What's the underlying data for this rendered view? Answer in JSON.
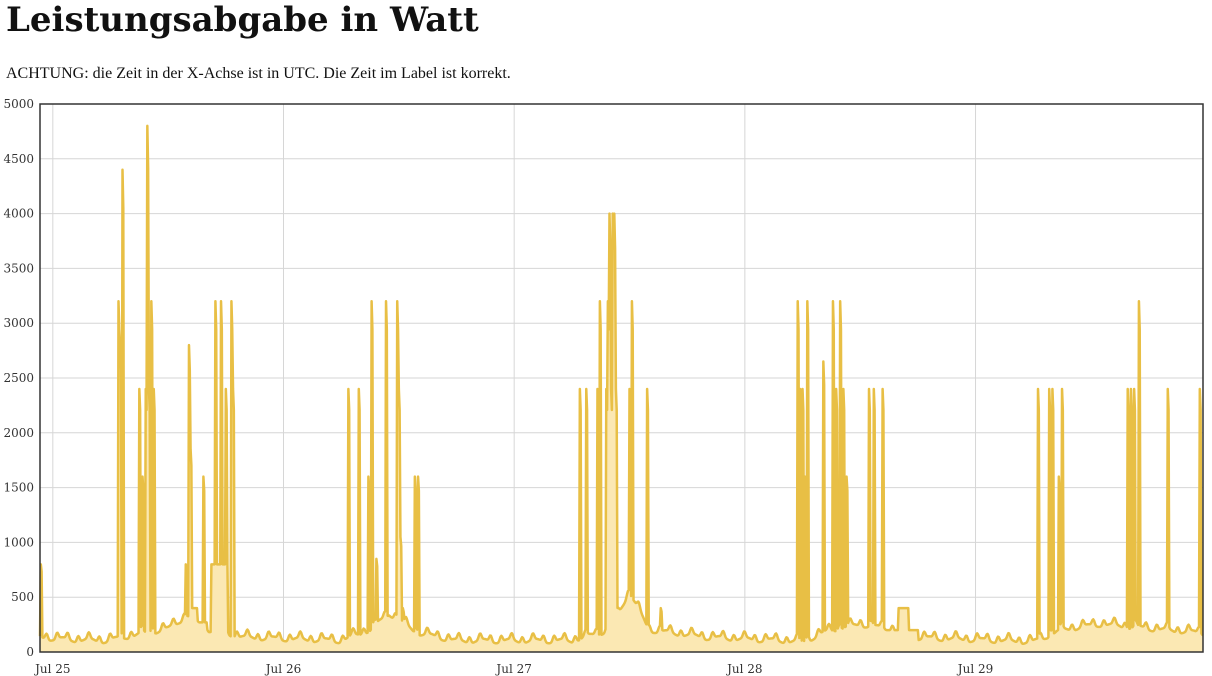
{
  "page": {
    "title": "Leistungsabgabe in Watt",
    "note": "ACHTUNG: die Zeit in der X-Achse ist in UTC. Die Zeit im Label ist korrekt."
  },
  "colors": {
    "line": "#e8bf45",
    "fill": "#fbe8b3",
    "grid": "#d6d6d6",
    "frame": "#333333"
  },
  "chart_data": {
    "type": "area",
    "title": "",
    "xlabel": "",
    "ylabel": "",
    "grid": true,
    "ylim": [
      0,
      5000
    ],
    "xlim": [
      "2023-07-24 22:40",
      "2023-07-29 23:40"
    ],
    "yticks": [
      0,
      500,
      1000,
      1500,
      2000,
      2500,
      3000,
      3500,
      4000,
      4500,
      5000
    ],
    "xticks": [
      {
        "label": "Jul 25",
        "t": "2023-07-25 00:00"
      },
      {
        "label": "Jul 26",
        "t": "2023-07-26 00:00"
      },
      {
        "label": "Jul 27",
        "t": "2023-07-27 00:00"
      },
      {
        "label": "Jul 28",
        "t": "2023-07-28 00:00"
      },
      {
        "label": "Jul 29",
        "t": "2023-07-29 00:00"
      }
    ],
    "series": [
      {
        "base_level": [
          [
            "2023-07-24 22:40",
            180
          ],
          [
            "2023-07-25 01:50",
            160
          ],
          [
            "2023-07-25 05:30",
            150
          ],
          [
            "2023-07-25 12:00",
            260
          ],
          [
            "2023-07-25 14:00",
            380
          ],
          [
            "2023-07-25 16:15",
            250
          ],
          [
            "2023-07-25 20:00",
            180
          ],
          [
            "2023-07-26 06:00",
            150
          ],
          [
            "2023-07-26 09:00",
            250
          ],
          [
            "2023-07-26 11:00",
            400
          ],
          [
            "2023-07-26 14:00",
            220
          ],
          [
            "2023-07-26 18:00",
            150
          ],
          [
            "2023-07-27 06:00",
            150
          ],
          [
            "2023-07-27 10:00",
            250
          ],
          [
            "2023-07-27 12:00",
            600
          ],
          [
            "2023-07-27 14:00",
            250
          ],
          [
            "2023-07-27 20:00",
            180
          ],
          [
            "2023-07-28 04:00",
            150
          ],
          [
            "2023-07-28 06:00",
            140
          ],
          [
            "2023-07-28 09:00",
            250
          ],
          [
            "2023-07-28 12:00",
            300
          ],
          [
            "2023-07-28 15:30",
            250
          ],
          [
            "2023-07-28 17:00",
            180
          ],
          [
            "2023-07-29 06:00",
            140
          ],
          [
            "2023-07-29 09:00",
            250
          ],
          [
            "2023-07-29 13:00",
            300
          ],
          [
            "2023-07-29 23:40",
            220
          ]
        ],
        "plateaus": [
          {
            "start": "2023-07-25 14:30",
            "end": "2023-07-25 15:00",
            "value": 400
          },
          {
            "start": "2023-07-25 15:00",
            "end": "2023-07-25 16:00",
            "value": 270
          },
          {
            "start": "2023-07-25 16:30",
            "end": "2023-07-25 18:10",
            "value": 800
          },
          {
            "start": "2023-07-28 16:00",
            "end": "2023-07-28 17:00",
            "value": 400
          },
          {
            "start": "2023-07-28 14:30",
            "end": "2023-07-28 18:00",
            "value": 200
          }
        ],
        "spikes": [
          [
            "2023-07-24 22:45",
            800
          ],
          [
            "2023-07-25 06:50",
            3200
          ],
          [
            "2023-07-25 07:00",
            2800
          ],
          [
            "2023-07-25 07:15",
            4400
          ],
          [
            "2023-07-25 09:00",
            2400
          ],
          [
            "2023-07-25 09:20",
            1600
          ],
          [
            "2023-07-25 09:40",
            2400
          ],
          [
            "2023-07-25 09:50",
            4800
          ],
          [
            "2023-07-25 10:00",
            2400
          ],
          [
            "2023-07-25 10:15",
            3200
          ],
          [
            "2023-07-25 10:30",
            2400
          ],
          [
            "2023-07-25 13:50",
            800
          ],
          [
            "2023-07-25 14:10",
            2800
          ],
          [
            "2023-07-25 14:20",
            1850
          ],
          [
            "2023-07-25 15:40",
            1600
          ],
          [
            "2023-07-25 16:55",
            3200
          ],
          [
            "2023-07-25 17:30",
            3200
          ],
          [
            "2023-07-25 18:00",
            2400
          ],
          [
            "2023-07-25 18:35",
            3200
          ],
          [
            "2023-07-25 18:45",
            2400
          ],
          [
            "2023-07-26 06:45",
            2400
          ],
          [
            "2023-07-26 07:50",
            2400
          ],
          [
            "2023-07-26 08:50",
            1600
          ],
          [
            "2023-07-26 09:10",
            3200
          ],
          [
            "2023-07-26 09:40",
            850
          ],
          [
            "2023-07-26 10:40",
            3200
          ],
          [
            "2023-07-26 11:50",
            3200
          ],
          [
            "2023-07-26 12:00",
            2400
          ],
          [
            "2023-07-26 12:10",
            1050
          ],
          [
            "2023-07-26 12:25",
            400
          ],
          [
            "2023-07-26 13:40",
            1600
          ],
          [
            "2023-07-26 14:00",
            1600
          ],
          [
            "2023-07-27 06:50",
            2400
          ],
          [
            "2023-07-27 07:30",
            2400
          ],
          [
            "2023-07-27 08:40",
            2400
          ],
          [
            "2023-07-27 08:55",
            3200
          ],
          [
            "2023-07-27 09:35",
            2400
          ],
          [
            "2023-07-27 09:45",
            3200
          ],
          [
            "2023-07-27 09:55",
            4000
          ],
          [
            "2023-07-27 10:05",
            2400
          ],
          [
            "2023-07-27 10:15",
            4000
          ],
          [
            "2023-07-27 10:25",
            4000
          ],
          [
            "2023-07-27 10:35",
            2400
          ],
          [
            "2023-07-27 12:00",
            2400
          ],
          [
            "2023-07-27 12:15",
            3200
          ],
          [
            "2023-07-27 13:50",
            2400
          ],
          [
            "2023-07-27 15:15",
            400
          ],
          [
            "2023-07-28 05:30",
            3200
          ],
          [
            "2023-07-28 05:45",
            2400
          ],
          [
            "2023-07-28 06:00",
            2400
          ],
          [
            "2023-07-28 06:15",
            1600
          ],
          [
            "2023-07-28 06:30",
            3200
          ],
          [
            "2023-07-28 08:10",
            2650
          ],
          [
            "2023-07-28 09:10",
            3200
          ],
          [
            "2023-07-28 09:30",
            2400
          ],
          [
            "2023-07-28 09:55",
            3200
          ],
          [
            "2023-07-28 10:15",
            2400
          ],
          [
            "2023-07-28 10:35",
            1600
          ],
          [
            "2023-07-28 12:55",
            2400
          ],
          [
            "2023-07-28 13:25",
            2400
          ],
          [
            "2023-07-28 14:20",
            2400
          ],
          [
            "2023-07-29 06:30",
            2400
          ],
          [
            "2023-07-29 07:40",
            2400
          ],
          [
            "2023-07-29 08:00",
            2400
          ],
          [
            "2023-07-29 08:40",
            1600
          ],
          [
            "2023-07-29 09:00",
            2400
          ],
          [
            "2023-07-29 15:50",
            2400
          ],
          [
            "2023-07-29 16:10",
            2400
          ],
          [
            "2023-07-29 16:30",
            2400
          ],
          [
            "2023-07-29 17:00",
            3200
          ],
          [
            "2023-07-29 20:00",
            2400
          ],
          [
            "2023-07-29 23:20",
            2400
          ]
        ]
      }
    ]
  }
}
